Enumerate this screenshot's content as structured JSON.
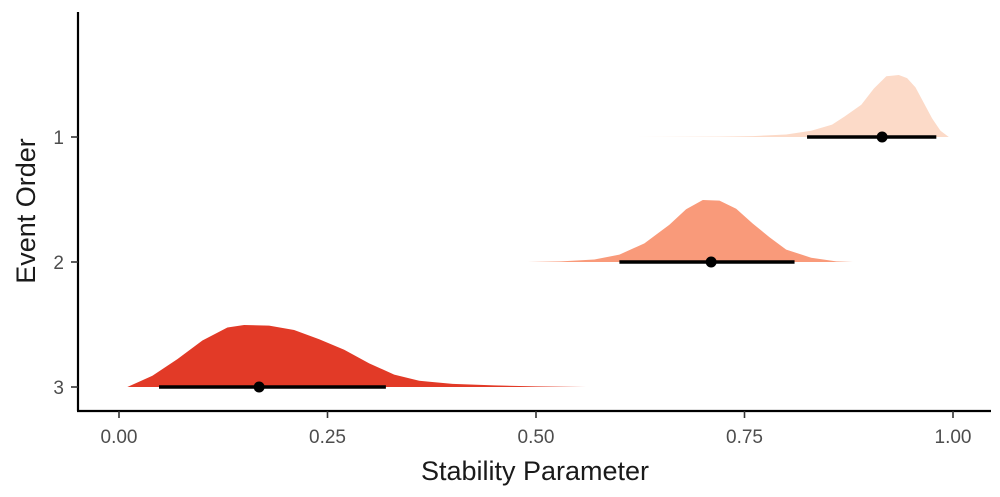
{
  "chart_data": {
    "type": "halfeye",
    "xlabel": "Stability Parameter",
    "ylabel": "Event Order",
    "xlim": [
      0.0,
      1.0
    ],
    "x_ticks": [
      0.0,
      0.25,
      0.5,
      0.75,
      1.0
    ],
    "x_tick_labels": [
      "0.00",
      "0.25",
      "0.50",
      "0.75",
      "1.00"
    ],
    "categories": [
      "1",
      "2",
      "3"
    ],
    "grid": false,
    "legend": "none",
    "series": [
      {
        "category": "1",
        "color": "#fcdac8",
        "point": 0.915,
        "interval": [
          0.825,
          0.98
        ],
        "density": [
          [
            0.58,
            0
          ],
          [
            0.66,
            0.002
          ],
          [
            0.72,
            0.006
          ],
          [
            0.76,
            0.015
          ],
          [
            0.8,
            0.04
          ],
          [
            0.83,
            0.1
          ],
          [
            0.855,
            0.2
          ],
          [
            0.87,
            0.33
          ],
          [
            0.89,
            0.52
          ],
          [
            0.905,
            0.78
          ],
          [
            0.92,
            0.98
          ],
          [
            0.935,
            1.0
          ],
          [
            0.945,
            0.95
          ],
          [
            0.955,
            0.8
          ],
          [
            0.965,
            0.55
          ],
          [
            0.975,
            0.3
          ],
          [
            0.985,
            0.1
          ],
          [
            0.995,
            0
          ]
        ]
      },
      {
        "category": "2",
        "color": "#f99a7a",
        "point": 0.71,
        "interval": [
          0.6,
          0.81
        ],
        "density": [
          [
            0.49,
            0
          ],
          [
            0.53,
            0.01
          ],
          [
            0.57,
            0.04
          ],
          [
            0.6,
            0.12
          ],
          [
            0.63,
            0.3
          ],
          [
            0.66,
            0.6
          ],
          [
            0.68,
            0.85
          ],
          [
            0.7,
            1.0
          ],
          [
            0.72,
            0.99
          ],
          [
            0.74,
            0.86
          ],
          [
            0.76,
            0.62
          ],
          [
            0.78,
            0.4
          ],
          [
            0.8,
            0.2
          ],
          [
            0.83,
            0.07
          ],
          [
            0.86,
            0.01
          ],
          [
            0.88,
            0
          ]
        ]
      },
      {
        "category": "3",
        "color": "#e23a27",
        "point": 0.168,
        "interval": [
          0.048,
          0.32
        ],
        "density": [
          [
            0.01,
            0
          ],
          [
            0.04,
            0.18
          ],
          [
            0.07,
            0.45
          ],
          [
            0.1,
            0.75
          ],
          [
            0.13,
            0.96
          ],
          [
            0.15,
            1.0
          ],
          [
            0.18,
            0.99
          ],
          [
            0.21,
            0.92
          ],
          [
            0.24,
            0.77
          ],
          [
            0.27,
            0.6
          ],
          [
            0.3,
            0.38
          ],
          [
            0.33,
            0.2
          ],
          [
            0.36,
            0.1
          ],
          [
            0.4,
            0.05
          ],
          [
            0.45,
            0.025
          ],
          [
            0.5,
            0.01
          ],
          [
            0.56,
            0
          ]
        ]
      }
    ]
  }
}
